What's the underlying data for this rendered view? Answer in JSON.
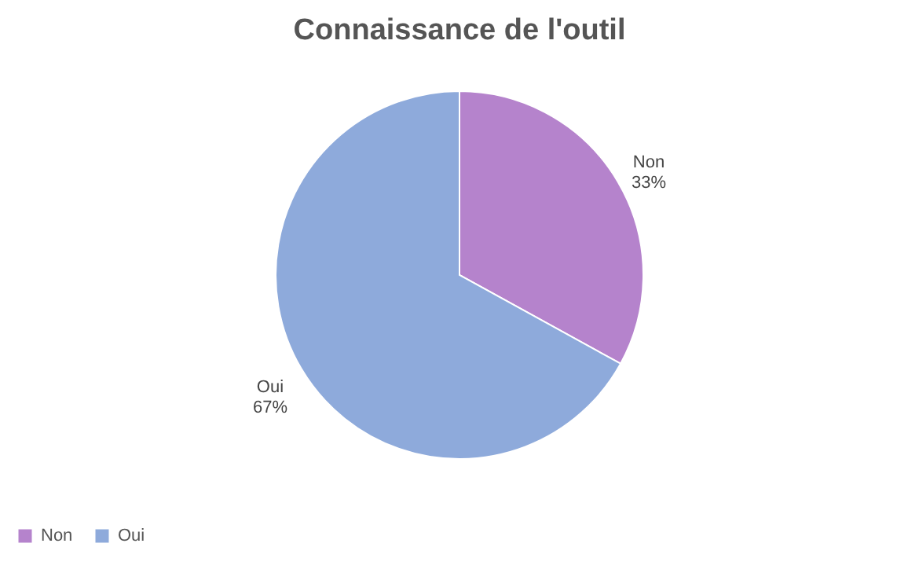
{
  "chart_data": {
    "type": "pie",
    "title": "Connaissance de l'outil",
    "categories": [
      "Non",
      "Oui"
    ],
    "values": [
      33,
      67
    ],
    "value_labels": [
      "33%",
      "67%"
    ],
    "colors": [
      "#b583cc",
      "#8eaadb"
    ],
    "legend": "bottom"
  }
}
